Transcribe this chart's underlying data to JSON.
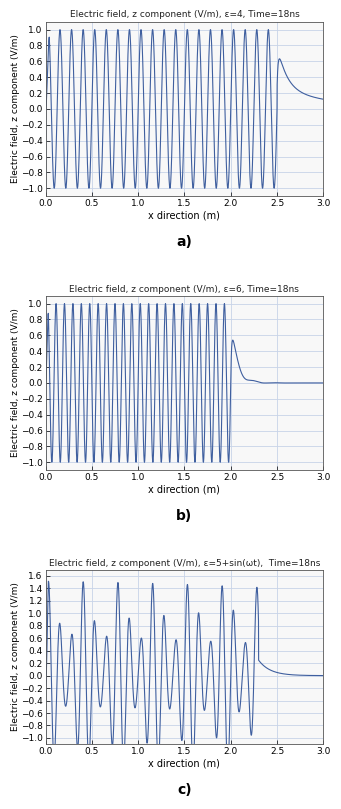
{
  "title_a": "Electric field, z component (V/m), ε=4, Time=18ns",
  "title_b": "Electric field, z component (V/m), ε=6, Time=18ns",
  "title_c": "Electric field, z component (V/m), ε=5+sin(ωt),  Time=18ns",
  "xlabel": "x direction (m)",
  "ylabel": "Electric field, z component (V/m)",
  "xlim": [
    0,
    3
  ],
  "ylim_ab": [
    -1.1,
    1.1
  ],
  "ylim_c": [
    -1.1,
    1.7
  ],
  "yticks_ab": [
    -1,
    -0.8,
    -0.6,
    -0.4,
    -0.2,
    0,
    0.2,
    0.4,
    0.6,
    0.8,
    1.0
  ],
  "yticks_c": [
    -1,
    -0.8,
    -0.6,
    -0.4,
    -0.2,
    0,
    0.2,
    0.4,
    0.6,
    0.8,
    1.0,
    1.2,
    1.4,
    1.6
  ],
  "xticks": [
    0,
    0.5,
    1,
    1.5,
    2,
    2.5,
    3
  ],
  "line_color": "#3f5f9f",
  "label_a": "a)",
  "label_b": "b)",
  "label_c": "c)",
  "background_color": "#ffffff",
  "axes_bg": "#f8f8f8",
  "grid_color": "#c8d4e8"
}
